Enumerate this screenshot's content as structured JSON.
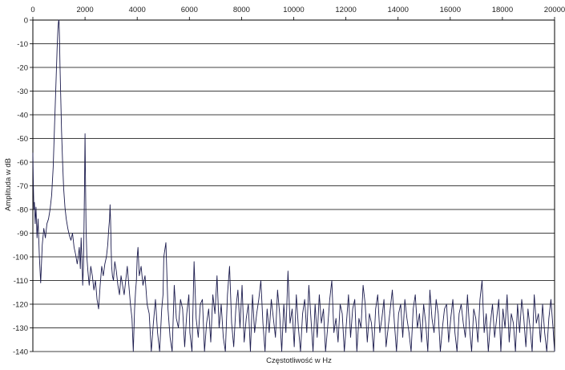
{
  "chart_data": {
    "type": "line",
    "title": "",
    "xlabel": "Częstotliwość w Hz",
    "ylabel": "Amplituda w dB",
    "xlim": [
      0,
      20000
    ],
    "ylim": [
      -140,
      0
    ],
    "x_ticks": [
      0,
      2000,
      4000,
      6000,
      8000,
      10000,
      12000,
      14000,
      16000,
      18000,
      20000
    ],
    "y_ticks": [
      0,
      -10,
      -20,
      -30,
      -40,
      -50,
      -60,
      -70,
      -80,
      -90,
      -100,
      -110,
      -120,
      -130,
      -140
    ],
    "x_axis_position": "top",
    "grid": "horizontal",
    "line_color": "#1c1c4e",
    "series": [
      {
        "x": [
          0,
          20,
          40,
          60,
          90,
          120,
          160,
          200,
          250,
          300,
          360,
          420,
          480,
          540,
          600,
          660,
          720,
          780,
          830,
          870,
          900,
          930,
          960,
          980,
          995,
          1000,
          1005,
          1020,
          1040,
          1070,
          1100,
          1140,
          1180,
          1230,
          1280,
          1340,
          1400,
          1460,
          1520,
          1580,
          1640,
          1700,
          1740,
          1780,
          1820,
          1850,
          1880,
          1910,
          1940,
          1960,
          1980,
          2000,
          2020,
          2040,
          2070,
          2110,
          2160,
          2220,
          2280,
          2340,
          2400,
          2460,
          2520,
          2580,
          2640,
          2700,
          2760,
          2820,
          2870,
          2910,
          2940,
          2960,
          2980,
          3000,
          3020,
          3050,
          3090,
          3140,
          3200,
          3260,
          3320,
          3380,
          3440,
          3500,
          3560,
          3620,
          3680,
          3740,
          3800,
          3850,
          3900,
          3940,
          3970,
          4000,
          4030,
          4080,
          4150,
          4220,
          4300,
          4380,
          4460,
          4540,
          4620,
          4700,
          4780,
          4860,
          4940,
          4990,
          5020,
          5100,
          5180,
          5260,
          5340,
          5420,
          5500,
          5580,
          5660,
          5740,
          5820,
          5900,
          5980,
          6020,
          6100,
          6180,
          6260,
          6340,
          6420,
          6500,
          6580,
          6660,
          6740,
          6820,
          6900,
          6980,
          7060,
          7140,
          7220,
          7300,
          7380,
          7460,
          7540,
          7620,
          7700,
          7780,
          7860,
          7940,
          8020,
          8100,
          8180,
          8260,
          8340,
          8420,
          8500,
          8580,
          8660,
          8740,
          8820,
          8900,
          8980,
          9060,
          9140,
          9220,
          9300,
          9380,
          9460,
          9540,
          9620,
          9700,
          9780,
          9860,
          9940,
          10020,
          10100,
          10180,
          10260,
          10340,
          10420,
          10500,
          10580,
          10660,
          10740,
          10820,
          10900,
          10980,
          11060,
          11140,
          11220,
          11300,
          11380,
          11460,
          11540,
          11620,
          11700,
          11780,
          11860,
          11940,
          12020,
          12100,
          12180,
          12260,
          12340,
          12420,
          12500,
          12580,
          12660,
          12740,
          12820,
          12900,
          12980,
          13060,
          13140,
          13220,
          13300,
          13380,
          13460,
          13540,
          13620,
          13700,
          13780,
          13860,
          13940,
          14020,
          14100,
          14180,
          14260,
          14340,
          14420,
          14500,
          14580,
          14660,
          14740,
          14820,
          14900,
          14980,
          15060,
          15140,
          15220,
          15300,
          15380,
          15460,
          15540,
          15620,
          15700,
          15780,
          15860,
          15940,
          16020,
          16100,
          16180,
          16260,
          16340,
          16420,
          16500,
          16580,
          16660,
          16740,
          16820,
          16900,
          16980,
          17060,
          17140,
          17220,
          17300,
          17380,
          17460,
          17540,
          17620,
          17700,
          17780,
          17860,
          17940,
          18020,
          18100,
          18180,
          18260,
          18340,
          18420,
          18500,
          18580,
          18660,
          18740,
          18820,
          18900,
          18980,
          19060,
          19140,
          19220,
          19300,
          19380,
          19460,
          19540,
          19620,
          19700,
          19780,
          19860,
          19940,
          20000
        ],
        "y": [
          -56,
          -70,
          -80,
          -77,
          -86,
          -79,
          -92,
          -84,
          -100,
          -111,
          -95,
          -88,
          -92,
          -86,
          -84,
          -80,
          -74,
          -62,
          -45,
          -32,
          -22,
          -12,
          -4,
          -1,
          0,
          0,
          -1,
          -7,
          -19,
          -33,
          -47,
          -60,
          -71,
          -79,
          -84,
          -88,
          -91,
          -93,
          -90,
          -96,
          -99,
          -103,
          -100,
          -96,
          -105,
          -92,
          -100,
          -112,
          -104,
          -88,
          -70,
          -48,
          -70,
          -88,
          -100,
          -106,
          -112,
          -104,
          -108,
          -114,
          -110,
          -118,
          -122,
          -112,
          -104,
          -108,
          -103,
          -100,
          -95,
          -88,
          -84,
          -78,
          -85,
          -96,
          -104,
          -108,
          -110,
          -102,
          -106,
          -112,
          -116,
          -108,
          -112,
          -116,
          -110,
          -104,
          -112,
          -120,
          -126,
          -140,
          -122,
          -114,
          -110,
          -100,
          -96,
          -108,
          -104,
          -112,
          -108,
          -120,
          -124,
          -140,
          -128,
          -118,
          -132,
          -140,
          -122,
          -116,
          -100,
          -94,
          -122,
          -134,
          -140,
          -112,
          -126,
          -130,
          -118,
          -122,
          -138,
          -124,
          -116,
          -132,
          -140,
          -102,
          -126,
          -134,
          -120,
          -118,
          -140,
          -128,
          -122,
          -136,
          -116,
          -124,
          -108,
          -130,
          -120,
          -134,
          -140,
          -116,
          -104,
          -128,
          -138,
          -122,
          -114,
          -130,
          -112,
          -136,
          -126,
          -120,
          -140,
          -116,
          -132,
          -124,
          -118,
          -110,
          -128,
          -140,
          -122,
          -132,
          -118,
          -126,
          -134,
          -114,
          -124,
          -140,
          -120,
          -132,
          -106,
          -128,
          -122,
          -138,
          -116,
          -130,
          -140,
          -124,
          -118,
          -132,
          -112,
          -126,
          -140,
          -120,
          -134,
          -116,
          -128,
          -122,
          -140,
          -130,
          -118,
          -110,
          -132,
          -126,
          -136,
          -120,
          -124,
          -140,
          -128,
          -116,
          -134,
          -122,
          -118,
          -140,
          -126,
          -130,
          -112,
          -120,
          -136,
          -124,
          -128,
          -140,
          -122,
          -116,
          -132,
          -126,
          -118,
          -138,
          -130,
          -122,
          -114,
          -128,
          -140,
          -124,
          -120,
          -134,
          -118,
          -126,
          -132,
          -140,
          -122,
          -116,
          -130,
          -124,
          -136,
          -120,
          -128,
          -140,
          -114,
          -126,
          -132,
          -118,
          -124,
          -140,
          -130,
          -122,
          -120,
          -136,
          -126,
          -118,
          -132,
          -140,
          -124,
          -120,
          -128,
          -134,
          -116,
          -130,
          -140,
          -122,
          -126,
          -136,
          -118,
          -110,
          -132,
          -124,
          -140,
          -128,
          -120,
          -134,
          -126,
          -118,
          -140,
          -122,
          -130,
          -116,
          -136,
          -124,
          -128,
          -140,
          -120,
          -132,
          -118,
          -126,
          -138,
          -122,
          -130,
          -140,
          -116,
          -128,
          -124,
          -136,
          -120,
          -132,
          -140,
          -126,
          -118,
          -130,
          -140
        ]
      }
    ]
  }
}
